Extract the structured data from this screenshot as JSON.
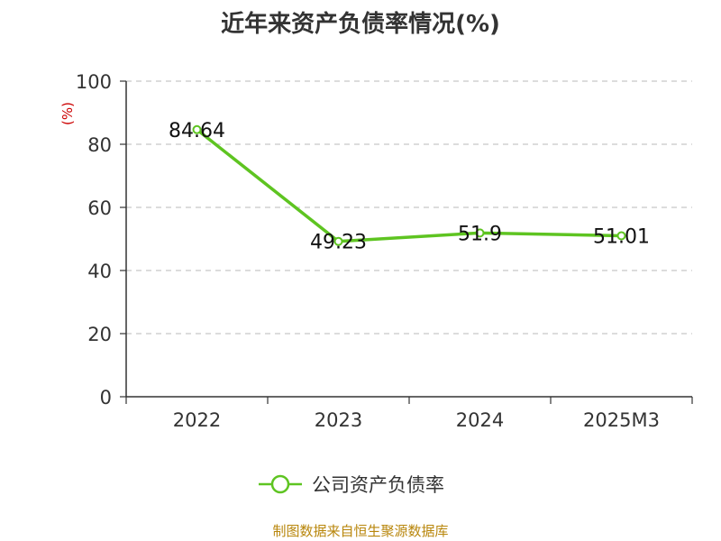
{
  "chart_data": {
    "type": "line",
    "title": "近年来资产负债率情况(%)",
    "ylabel": "(%)",
    "categories": [
      "2022",
      "2023",
      "2024",
      "2025M3"
    ],
    "series": [
      {
        "name": "公司资产负债率",
        "values": [
          84.64,
          49.23,
          51.9,
          51.01
        ],
        "labels": [
          "84.64",
          "49.23",
          "51.9",
          "51.01"
        ],
        "color": "#5ec421"
      }
    ],
    "ylim": [
      0,
      100
    ],
    "yticks": [
      "0",
      "20",
      "40",
      "60",
      "80",
      "100"
    ],
    "grid": true,
    "legend_position": "bottom"
  },
  "footer": {
    "source": "制图数据来自恒生聚源数据库",
    "color": "#b8860b"
  },
  "colors": {
    "axis": "#333333",
    "grid": "#c8c8c8",
    "ylabel": "#cc0000",
    "text": "#333333"
  }
}
